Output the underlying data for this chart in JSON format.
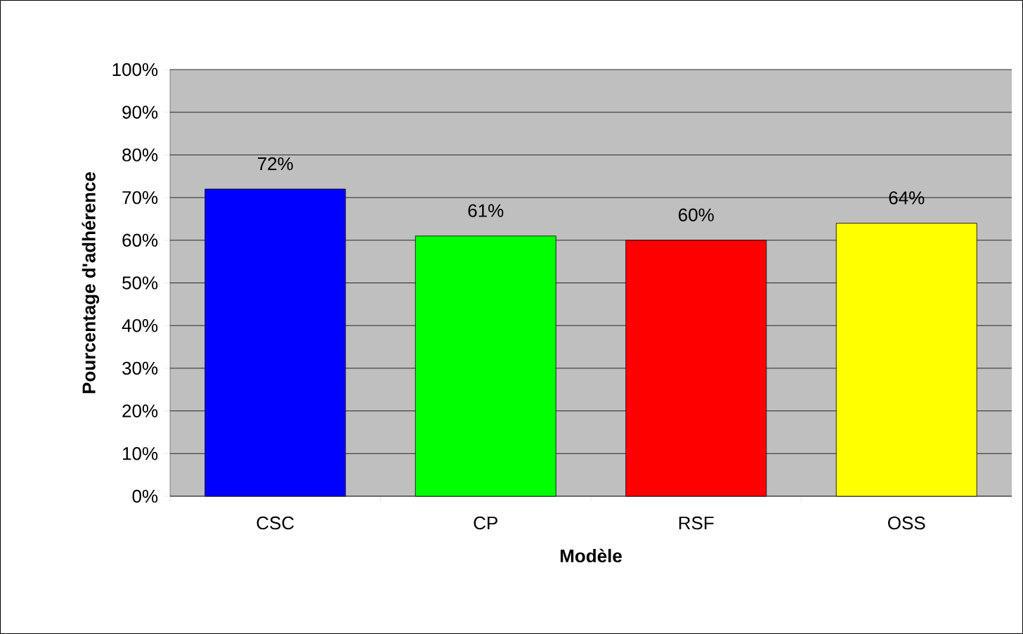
{
  "chart_data": {
    "type": "bar",
    "xlabel": "Modèle",
    "ylabel": "Pourcentage d'adhérence",
    "categories": [
      "CSC",
      "CP",
      "RSF",
      "OSS"
    ],
    "values": [
      72,
      61,
      60,
      64
    ],
    "colors": [
      "#0000ff",
      "#00ff00",
      "#ff0000",
      "#ffff00"
    ],
    "value_labels": [
      "72%",
      "61%",
      "60%",
      "64%"
    ],
    "ylim": [
      0,
      100
    ],
    "yticks": [
      {
        "value": 0,
        "label": "0%"
      },
      {
        "value": 10,
        "label": "10%"
      },
      {
        "value": 20,
        "label": "20%"
      },
      {
        "value": 30,
        "label": "30%"
      },
      {
        "value": 40,
        "label": "40%"
      },
      {
        "value": 50,
        "label": "50%"
      },
      {
        "value": 60,
        "label": "60%"
      },
      {
        "value": 70,
        "label": "70%"
      },
      {
        "value": 80,
        "label": "80%"
      },
      {
        "value": 90,
        "label": "90%"
      },
      {
        "value": 100,
        "label": "100%"
      }
    ],
    "grid": "y"
  }
}
